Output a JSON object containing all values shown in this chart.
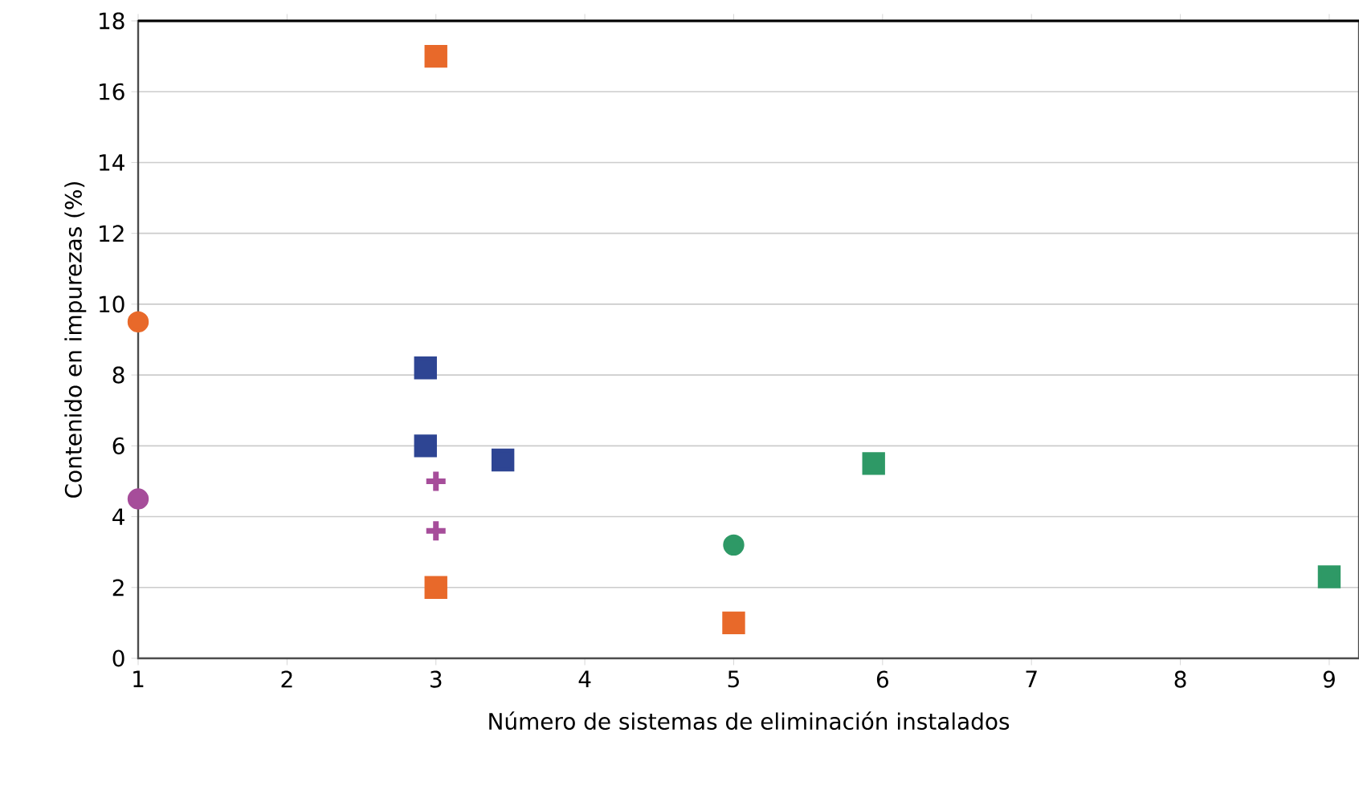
{
  "chart_data": {
    "type": "scatter",
    "xlabel": "Número de sistemas de eliminación instalados",
    "ylabel": "Contenido en impurezas (%)",
    "xlim": [
      1,
      9.2
    ],
    "xticks": [
      1,
      2,
      3,
      4,
      5,
      6,
      7,
      8,
      9
    ],
    "ylim": [
      0,
      18
    ],
    "yticks": [
      0,
      2,
      4,
      6,
      8,
      10,
      12,
      14,
      16,
      18
    ],
    "grid": "y",
    "series": [
      {
        "color": "#e8692a",
        "marker": "circle",
        "x": [
          1
        ],
        "values": [
          9.5
        ]
      },
      {
        "color": "#a64d9a",
        "marker": "circle",
        "x": [
          1
        ],
        "values": [
          4.5
        ]
      },
      {
        "color": "#e8692a",
        "marker": "square",
        "x": [
          3,
          3
        ],
        "values": [
          17,
          2
        ]
      },
      {
        "color": "#2e4593",
        "marker": "square",
        "x": [
          2.93,
          2.93,
          3.45
        ],
        "values": [
          8.2,
          6.0,
          5.6
        ]
      },
      {
        "color": "#a64d9a",
        "marker": "cross",
        "x": [
          3,
          3
        ],
        "values": [
          5.0,
          3.6
        ]
      },
      {
        "color": "#2e9966",
        "marker": "circle",
        "x": [
          5
        ],
        "values": [
          3.2
        ]
      },
      {
        "color": "#e8692a",
        "marker": "square",
        "x": [
          5
        ],
        "values": [
          1.0
        ]
      },
      {
        "color": "#2e9966",
        "marker": "square",
        "x": [
          5.94
        ],
        "values": [
          5.5
        ]
      },
      {
        "color": "#2e9966",
        "marker": "square",
        "x": [
          9
        ],
        "values": [
          2.3
        ]
      }
    ]
  }
}
